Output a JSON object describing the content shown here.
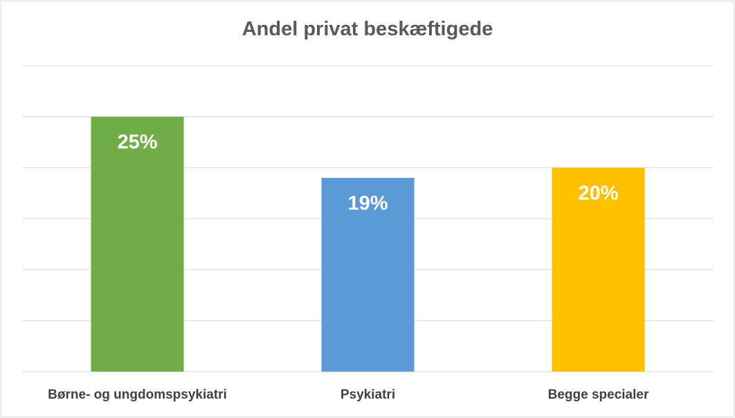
{
  "chart_data": {
    "type": "bar",
    "title": "Andel privat beskæftigede",
    "categories": [
      "Børne- og ungdomspsykiatri",
      "Psykiatri",
      "Begge specialer"
    ],
    "values": [
      25,
      19,
      20
    ],
    "data_labels": [
      "25%",
      "19%",
      "20%"
    ],
    "colors": [
      "#70ad47",
      "#5b9bd5",
      "#ffc000"
    ],
    "ylim": [
      0,
      30
    ],
    "grid": true,
    "legend": "none"
  }
}
